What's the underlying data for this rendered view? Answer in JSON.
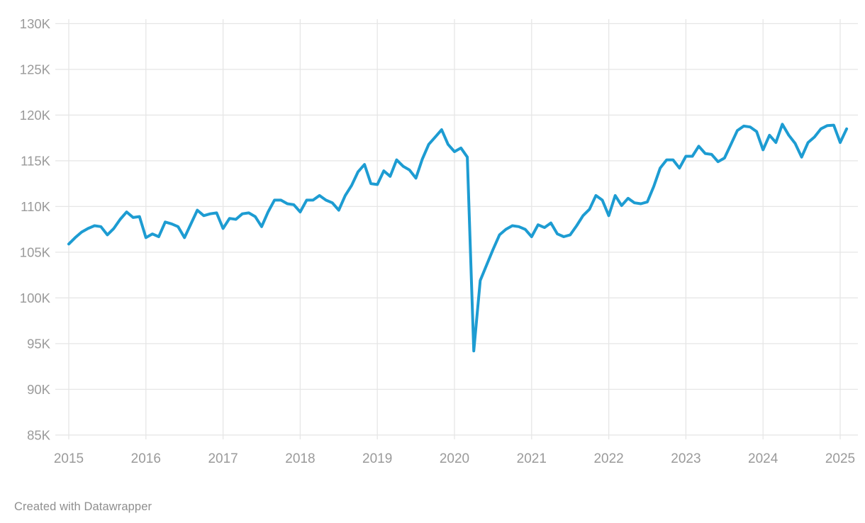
{
  "page": {
    "background": "#ffffff"
  },
  "footer": {
    "attribution": "Created with Datawrapper"
  },
  "chart_data": {
    "type": "line",
    "title": "",
    "xlabel": "",
    "ylabel": "",
    "unit": "K (thousands)",
    "frequency": "monthly",
    "start": "2015-01",
    "end": "2025-02",
    "values": [
      105.9,
      106.6,
      107.2,
      107.6,
      107.9,
      107.8,
      106.9,
      107.6,
      108.6,
      109.4,
      108.8,
      108.9,
      106.6,
      107.0,
      106.7,
      108.3,
      108.1,
      107.8,
      106.6,
      108.1,
      109.6,
      109.0,
      109.2,
      109.3,
      107.6,
      108.7,
      108.6,
      109.2,
      109.3,
      108.9,
      107.8,
      109.4,
      110.7,
      110.7,
      110.3,
      110.2,
      109.4,
      110.7,
      110.7,
      111.2,
      110.7,
      110.4,
      109.6,
      111.2,
      112.3,
      113.8,
      114.6,
      112.5,
      112.4,
      113.9,
      113.3,
      115.1,
      114.4,
      114.0,
      113.1,
      115.2,
      116.8,
      117.6,
      118.4,
      116.8,
      116.0,
      116.4,
      115.4,
      94.2,
      101.9,
      103.6,
      105.3,
      106.9,
      107.5,
      107.9,
      107.8,
      107.5,
      106.7,
      108.0,
      107.7,
      108.2,
      107.0,
      106.7,
      106.9,
      107.9,
      109.0,
      109.7,
      111.2,
      110.7,
      109.0,
      111.2,
      110.1,
      110.9,
      110.4,
      110.3,
      110.5,
      112.2,
      114.2,
      115.1,
      115.1,
      114.2,
      115.5,
      115.5,
      116.6,
      115.8,
      115.7,
      114.9,
      115.3,
      116.8,
      118.3,
      118.8,
      118.7,
      118.2,
      116.2,
      117.8,
      117.0,
      119.0,
      117.8,
      116.9,
      115.4,
      117.0,
      117.6,
      118.5,
      118.85,
      118.9,
      117.0,
      118.5
    ],
    "x_tick_labels": [
      "2015",
      "2016",
      "2017",
      "2018",
      "2019",
      "2020",
      "2021",
      "2022",
      "2023",
      "2024",
      "2025"
    ],
    "y_tick_labels": [
      "130K",
      "125K",
      "120K",
      "115K",
      "110K",
      "105K",
      "100K",
      "95K",
      "90K",
      "85K"
    ],
    "y_tick_values": [
      130,
      125,
      120,
      115,
      110,
      105,
      100,
      95,
      90,
      85
    ],
    "y_min": 85,
    "y_max": 130,
    "grid": true,
    "legend_position": "none",
    "colors": {
      "line": "#1d9cd2",
      "grid": "#e6e6e6",
      "tick_label": "#9a9a9a",
      "attribution": "#8f8f8f"
    }
  }
}
